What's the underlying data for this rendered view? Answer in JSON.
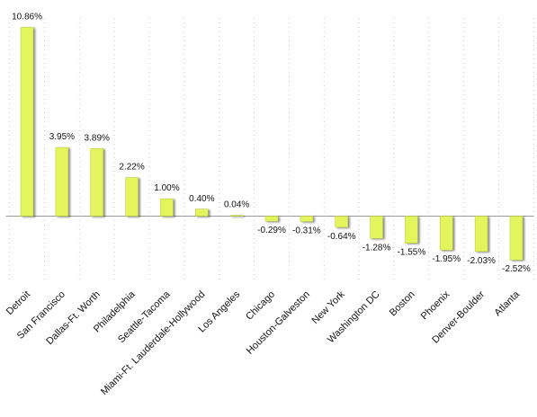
{
  "chart_data": {
    "type": "bar",
    "categories": [
      "Detroit",
      "San Francisco",
      "Dallas-Ft. Worth",
      "Philadelphia",
      "Seattle-Tacoma",
      "Miami-Ft. Lauderdale-Hollywood",
      "Los Angeles",
      "Chicago",
      "Houston-Galveston",
      "New York",
      "Washington DC",
      "Boston",
      "Phoenix",
      "Denver-Boulder",
      "Atlanta"
    ],
    "values": [
      10.86,
      3.95,
      3.89,
      2.22,
      1.0,
      0.4,
      0.04,
      -0.29,
      -0.31,
      -0.64,
      -1.28,
      -1.55,
      -1.95,
      -2.03,
      -2.52
    ],
    "value_labels": [
      "10.86%",
      "3.95%",
      "3.89%",
      "2.22%",
      "1.00%",
      "0.40%",
      "0.04%",
      "-0.29%",
      "-0.31%",
      "-0.64%",
      "-1.28%",
      "-1.55%",
      "-1.95%",
      "-2.03%",
      "-2.52%"
    ],
    "color": "#e4f45c",
    "ylim": [
      -3.8,
      11.4
    ],
    "grid": true
  }
}
